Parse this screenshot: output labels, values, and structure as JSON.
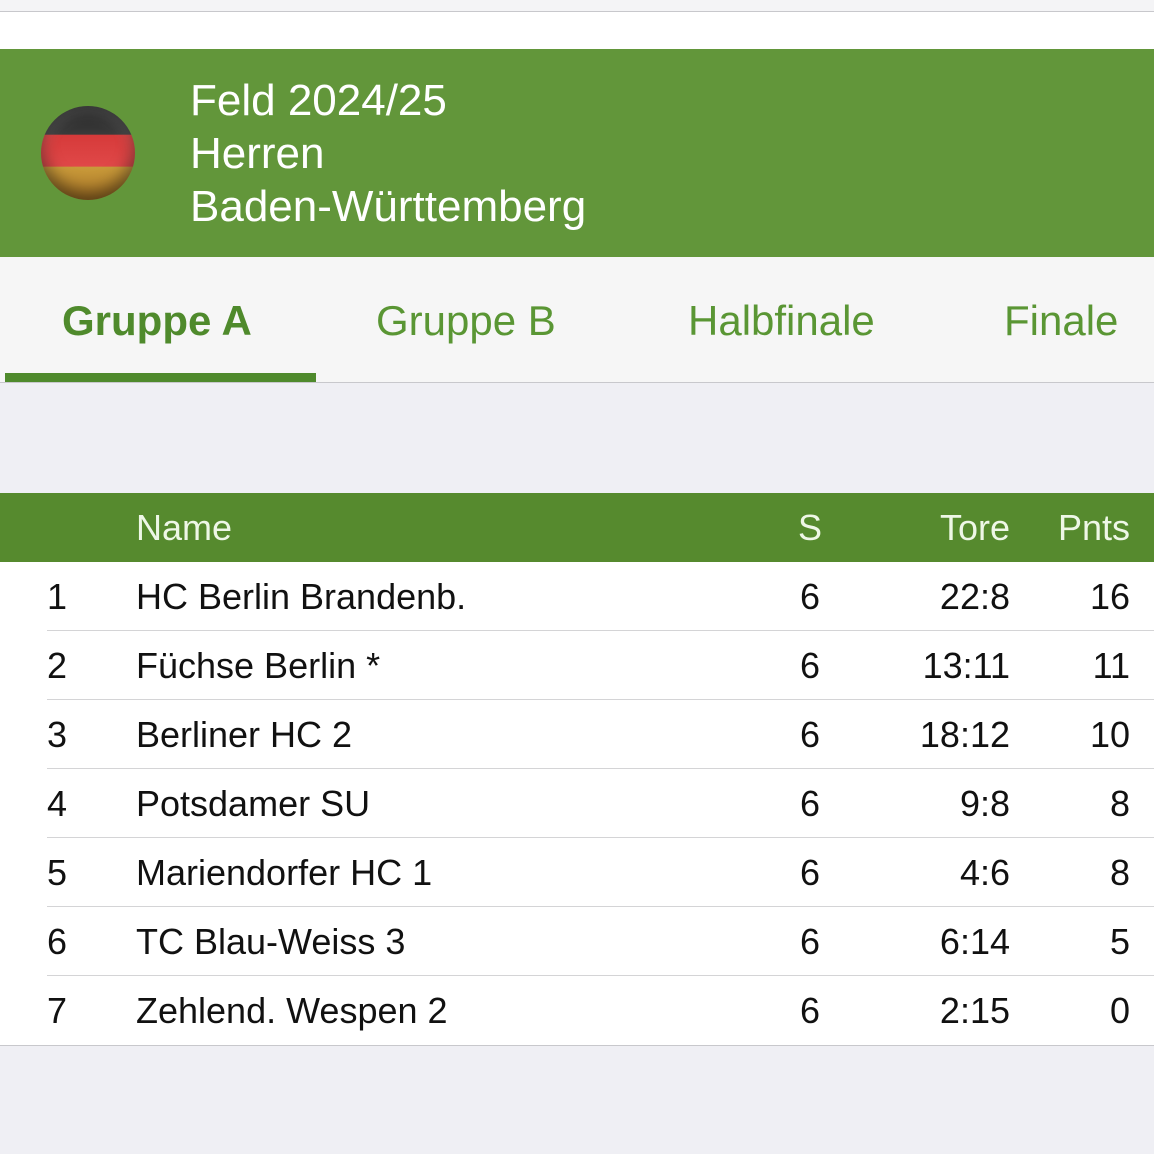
{
  "header": {
    "line1": "Feld 2024/25",
    "line2": "Herren",
    "line3": "Baden-Württemberg",
    "flag_icon": "germany-flag-icon"
  },
  "tabs": [
    {
      "label": "Gruppe A",
      "active": true
    },
    {
      "label": "Gruppe B"
    },
    {
      "label": "Halbfinale"
    },
    {
      "label": "Finale"
    }
  ],
  "colors": {
    "header": "#62963a",
    "table_header": "#568a2e",
    "accent": "#4f8a2c"
  },
  "table": {
    "columns": {
      "name": "Name",
      "s": "S",
      "tore": "Tore",
      "pnts": "Pnts"
    },
    "rows": [
      {
        "rank": "1",
        "name": "HC Berlin Brandenb.",
        "s": "6",
        "tore": "22:8",
        "pnts": "16"
      },
      {
        "rank": "2",
        "name": "Füchse Berlin *",
        "s": "6",
        "tore": "13:11",
        "pnts": "11"
      },
      {
        "rank": "3",
        "name": "Berliner HC 2",
        "s": "6",
        "tore": "18:12",
        "pnts": "10"
      },
      {
        "rank": "4",
        "name": "Potsdamer SU",
        "s": "6",
        "tore": "9:8",
        "pnts": "8"
      },
      {
        "rank": "5",
        "name": "Mariendorfer HC 1",
        "s": "6",
        "tore": "4:6",
        "pnts": "8"
      },
      {
        "rank": "6",
        "name": "TC Blau-Weiss 3",
        "s": "6",
        "tore": "6:14",
        "pnts": "5"
      },
      {
        "rank": "7",
        "name": "Zehlend. Wespen 2",
        "s": "6",
        "tore": "2:15",
        "pnts": "0"
      }
    ]
  }
}
